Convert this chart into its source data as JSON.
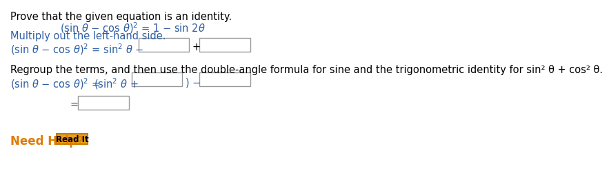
{
  "bg_color": "#ffffff",
  "text_color_black": "#000000",
  "text_color_blue": "#2e5fa3",
  "text_color_orange": "#e07b00",
  "line1": "Prove that the given equation is an identity.",
  "line3": "Multiply out the left-hand side.",
  "line5": "Regroup the terms, and then use the double-angle formula for sine and the trigonometric identity for sin² θ + cos² θ.",
  "need_help": "Need Help?",
  "read_it": "Read It"
}
